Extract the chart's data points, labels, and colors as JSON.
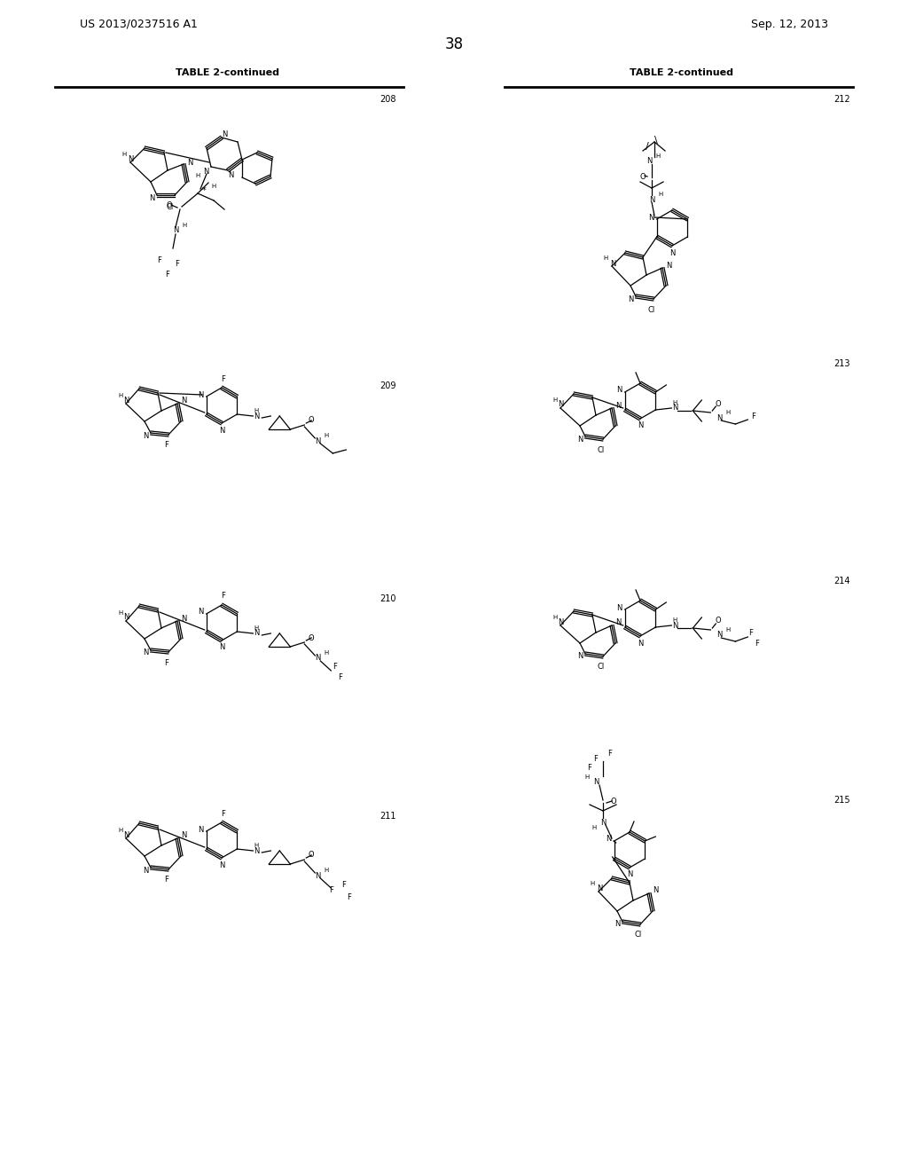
{
  "page_number": "38",
  "patent_number": "US 2013/0237516 A1",
  "patent_date": "Sep. 12, 2013",
  "table_title": "TABLE 2-continued",
  "background_color": "#ffffff",
  "text_color": "#000000",
  "compounds": [
    "208",
    "209",
    "210",
    "211",
    "212",
    "213",
    "214",
    "215"
  ]
}
